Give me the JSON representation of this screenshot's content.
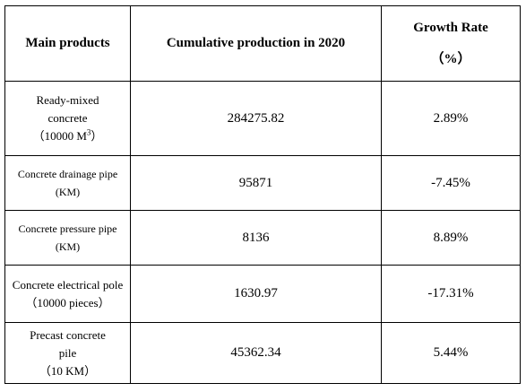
{
  "table": {
    "headers": {
      "product": "Main products",
      "production": "Cumulative production in 2020",
      "growth_title": "Growth Rate",
      "growth_unit": "（%）"
    },
    "rows": [
      {
        "name": "Ready-mixed concrete",
        "unit": "（10000 M",
        "unit_sup": "3",
        "unit_close": "）",
        "production": "284275.82",
        "growth": "2.89%"
      },
      {
        "name": "Concrete drainage pipe",
        "unit": "(KM)",
        "production": "95871",
        "growth": "-7.45%"
      },
      {
        "name": "Concrete pressure pipe",
        "unit": "(KM)",
        "production": "8136",
        "growth": "8.89%"
      },
      {
        "name": "Concrete electrical pole",
        "unit": "（10000 pieces）",
        "production": "1630.97",
        "growth": "-17.31%"
      },
      {
        "name": "Precast concrete pile",
        "unit": "（10 KM）",
        "production": "45362.34",
        "growth": "5.44%"
      }
    ]
  }
}
